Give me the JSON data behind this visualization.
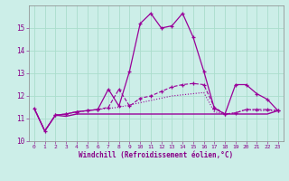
{
  "background_color": "#cceee8",
  "grid_color": "#aaddcc",
  "line_color": "#990099",
  "xlim": [
    -0.5,
    23.5
  ],
  "ylim": [
    10,
    16
  ],
  "xlabel": "Windchill (Refroidissement éolien,°C)",
  "yticks": [
    10,
    11,
    12,
    13,
    14,
    15
  ],
  "xticks": [
    0,
    1,
    2,
    3,
    4,
    5,
    6,
    7,
    8,
    9,
    10,
    11,
    12,
    13,
    14,
    15,
    16,
    17,
    18,
    19,
    20,
    21,
    22,
    23
  ],
  "series": [
    {
      "x": [
        0,
        1,
        2,
        3,
        4,
        5,
        6,
        7,
        8,
        9,
        10,
        11,
        12,
        13,
        14,
        15,
        16,
        17,
        18,
        19,
        20,
        21,
        22,
        23
      ],
      "y": [
        11.45,
        10.45,
        11.15,
        11.1,
        11.2,
        11.2,
        11.2,
        11.2,
        11.2,
        11.2,
        11.2,
        11.2,
        11.2,
        11.2,
        11.2,
        11.2,
        11.2,
        11.2,
        11.2,
        11.2,
        11.2,
        11.2,
        11.2,
        11.35
      ],
      "style": "solid",
      "marker": null,
      "lw": 1.0
    },
    {
      "x": [
        0,
        1,
        2,
        3,
        4,
        5,
        6,
        7,
        8,
        9,
        10,
        11,
        12,
        13,
        14,
        15,
        16,
        17,
        18,
        19,
        20,
        21,
        22,
        23
      ],
      "y": [
        11.45,
        10.45,
        11.15,
        11.2,
        11.3,
        11.35,
        11.4,
        11.45,
        11.5,
        11.6,
        11.7,
        11.8,
        11.9,
        12.0,
        12.05,
        12.1,
        12.15,
        11.3,
        11.2,
        11.25,
        11.4,
        11.35,
        11.35,
        11.35
      ],
      "style": "dotted",
      "marker": null,
      "lw": 0.8
    },
    {
      "x": [
        2,
        3,
        4,
        5,
        6,
        7,
        8,
        9,
        10,
        11,
        12,
        13,
        14,
        15,
        16,
        17,
        18,
        19,
        20,
        21,
        22,
        23
      ],
      "y": [
        11.15,
        11.2,
        11.3,
        11.35,
        11.4,
        11.5,
        12.3,
        11.55,
        11.9,
        12.0,
        12.2,
        12.4,
        12.5,
        12.55,
        12.5,
        11.5,
        11.2,
        11.25,
        11.4,
        11.4,
        11.4,
        11.35
      ],
      "style": "dashed",
      "marker": "+",
      "lw": 0.8
    },
    {
      "x": [
        0,
        1,
        2,
        3,
        4,
        5,
        6,
        7,
        8,
        9,
        10,
        11,
        12,
        13,
        14,
        15,
        16,
        17,
        18,
        19,
        20,
        21,
        22,
        23
      ],
      "y": [
        11.45,
        10.45,
        11.15,
        11.2,
        11.3,
        11.35,
        11.4,
        12.3,
        11.55,
        13.1,
        15.2,
        15.65,
        15.0,
        15.1,
        15.65,
        14.6,
        13.1,
        11.45,
        11.2,
        12.5,
        12.5,
        12.1,
        11.85,
        11.35
      ],
      "style": "solid",
      "marker": "+",
      "lw": 0.9
    }
  ]
}
